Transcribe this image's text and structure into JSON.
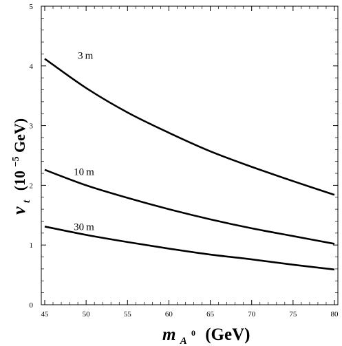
{
  "chart_data": {
    "type": "line",
    "x_axis": {
      "variable": "m",
      "subscript": "A",
      "superscript": "0",
      "unit": "(GeV)",
      "lim": [
        45,
        80
      ],
      "ticks": [
        45,
        50,
        55,
        60,
        65,
        70,
        75,
        80
      ]
    },
    "y_axis": {
      "variable": "v",
      "subscript": "t",
      "unit_prefix": "(10",
      "unit_exponent": "−5",
      "unit_suffix": " GeV)",
      "lim": [
        0,
        5
      ],
      "ticks": [
        0,
        1,
        2,
        3,
        4,
        5
      ]
    },
    "series": [
      {
        "name": "3m",
        "x": [
          45,
          50,
          55,
          60,
          65,
          70,
          75,
          80
        ],
        "values": [
          4.12,
          3.63,
          3.22,
          2.88,
          2.57,
          2.31,
          2.07,
          1.84
        ]
      },
      {
        "name": "10m",
        "x": [
          45,
          50,
          55,
          60,
          65,
          70,
          75,
          80
        ],
        "values": [
          2.26,
          2.0,
          1.79,
          1.6,
          1.43,
          1.28,
          1.15,
          1.02
        ]
      },
      {
        "name": "30m",
        "x": [
          45,
          50,
          55,
          60,
          65,
          70,
          75,
          80
        ],
        "values": [
          1.31,
          1.17,
          1.05,
          0.94,
          0.84,
          0.76,
          0.67,
          0.59
        ]
      }
    ],
    "grid": false,
    "legend": "none"
  }
}
